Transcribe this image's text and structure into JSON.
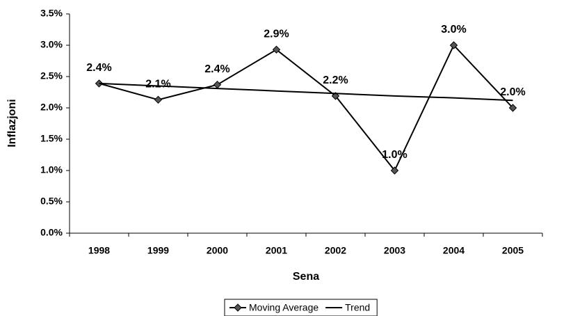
{
  "chart_data": {
    "type": "line",
    "x_label": "Sena",
    "y_label": "Inflazjoni",
    "categories": [
      "1998",
      "1999",
      "2000",
      "2001",
      "2002",
      "2003",
      "2004",
      "2005"
    ],
    "series": [
      {
        "name": "Moving Average",
        "color": "#000000",
        "marker": "diamond",
        "values": [
          2.39,
          2.13,
          2.37,
          2.93,
          2.19,
          1.0,
          3.0,
          2.0
        ],
        "value_labels": [
          "2.4%",
          "2.1%",
          "2.4%",
          "2.9%",
          "2.2%",
          "1.0%",
          "3.0%",
          "2.0%"
        ]
      },
      {
        "name": "Trend",
        "color": "#000000",
        "values": [
          2.39,
          2.35,
          2.31,
          2.27,
          2.23,
          2.19,
          2.16,
          2.12
        ]
      }
    ],
    "ylim": [
      0,
      3.5
    ],
    "yticks": [
      {
        "value": 0,
        "label": "0.0%"
      },
      {
        "value": 0.5,
        "label": "0.5%"
      },
      {
        "value": 1,
        "label": "1.0%"
      },
      {
        "value": 1.5,
        "label": "1.5%"
      },
      {
        "value": 2,
        "label": "2.0%"
      },
      {
        "value": 2.5,
        "label": "2.5%"
      },
      {
        "value": 3,
        "label": "3.0%"
      },
      {
        "value": 3.5,
        "label": "3.5%"
      }
    ],
    "legend": "bottom"
  }
}
